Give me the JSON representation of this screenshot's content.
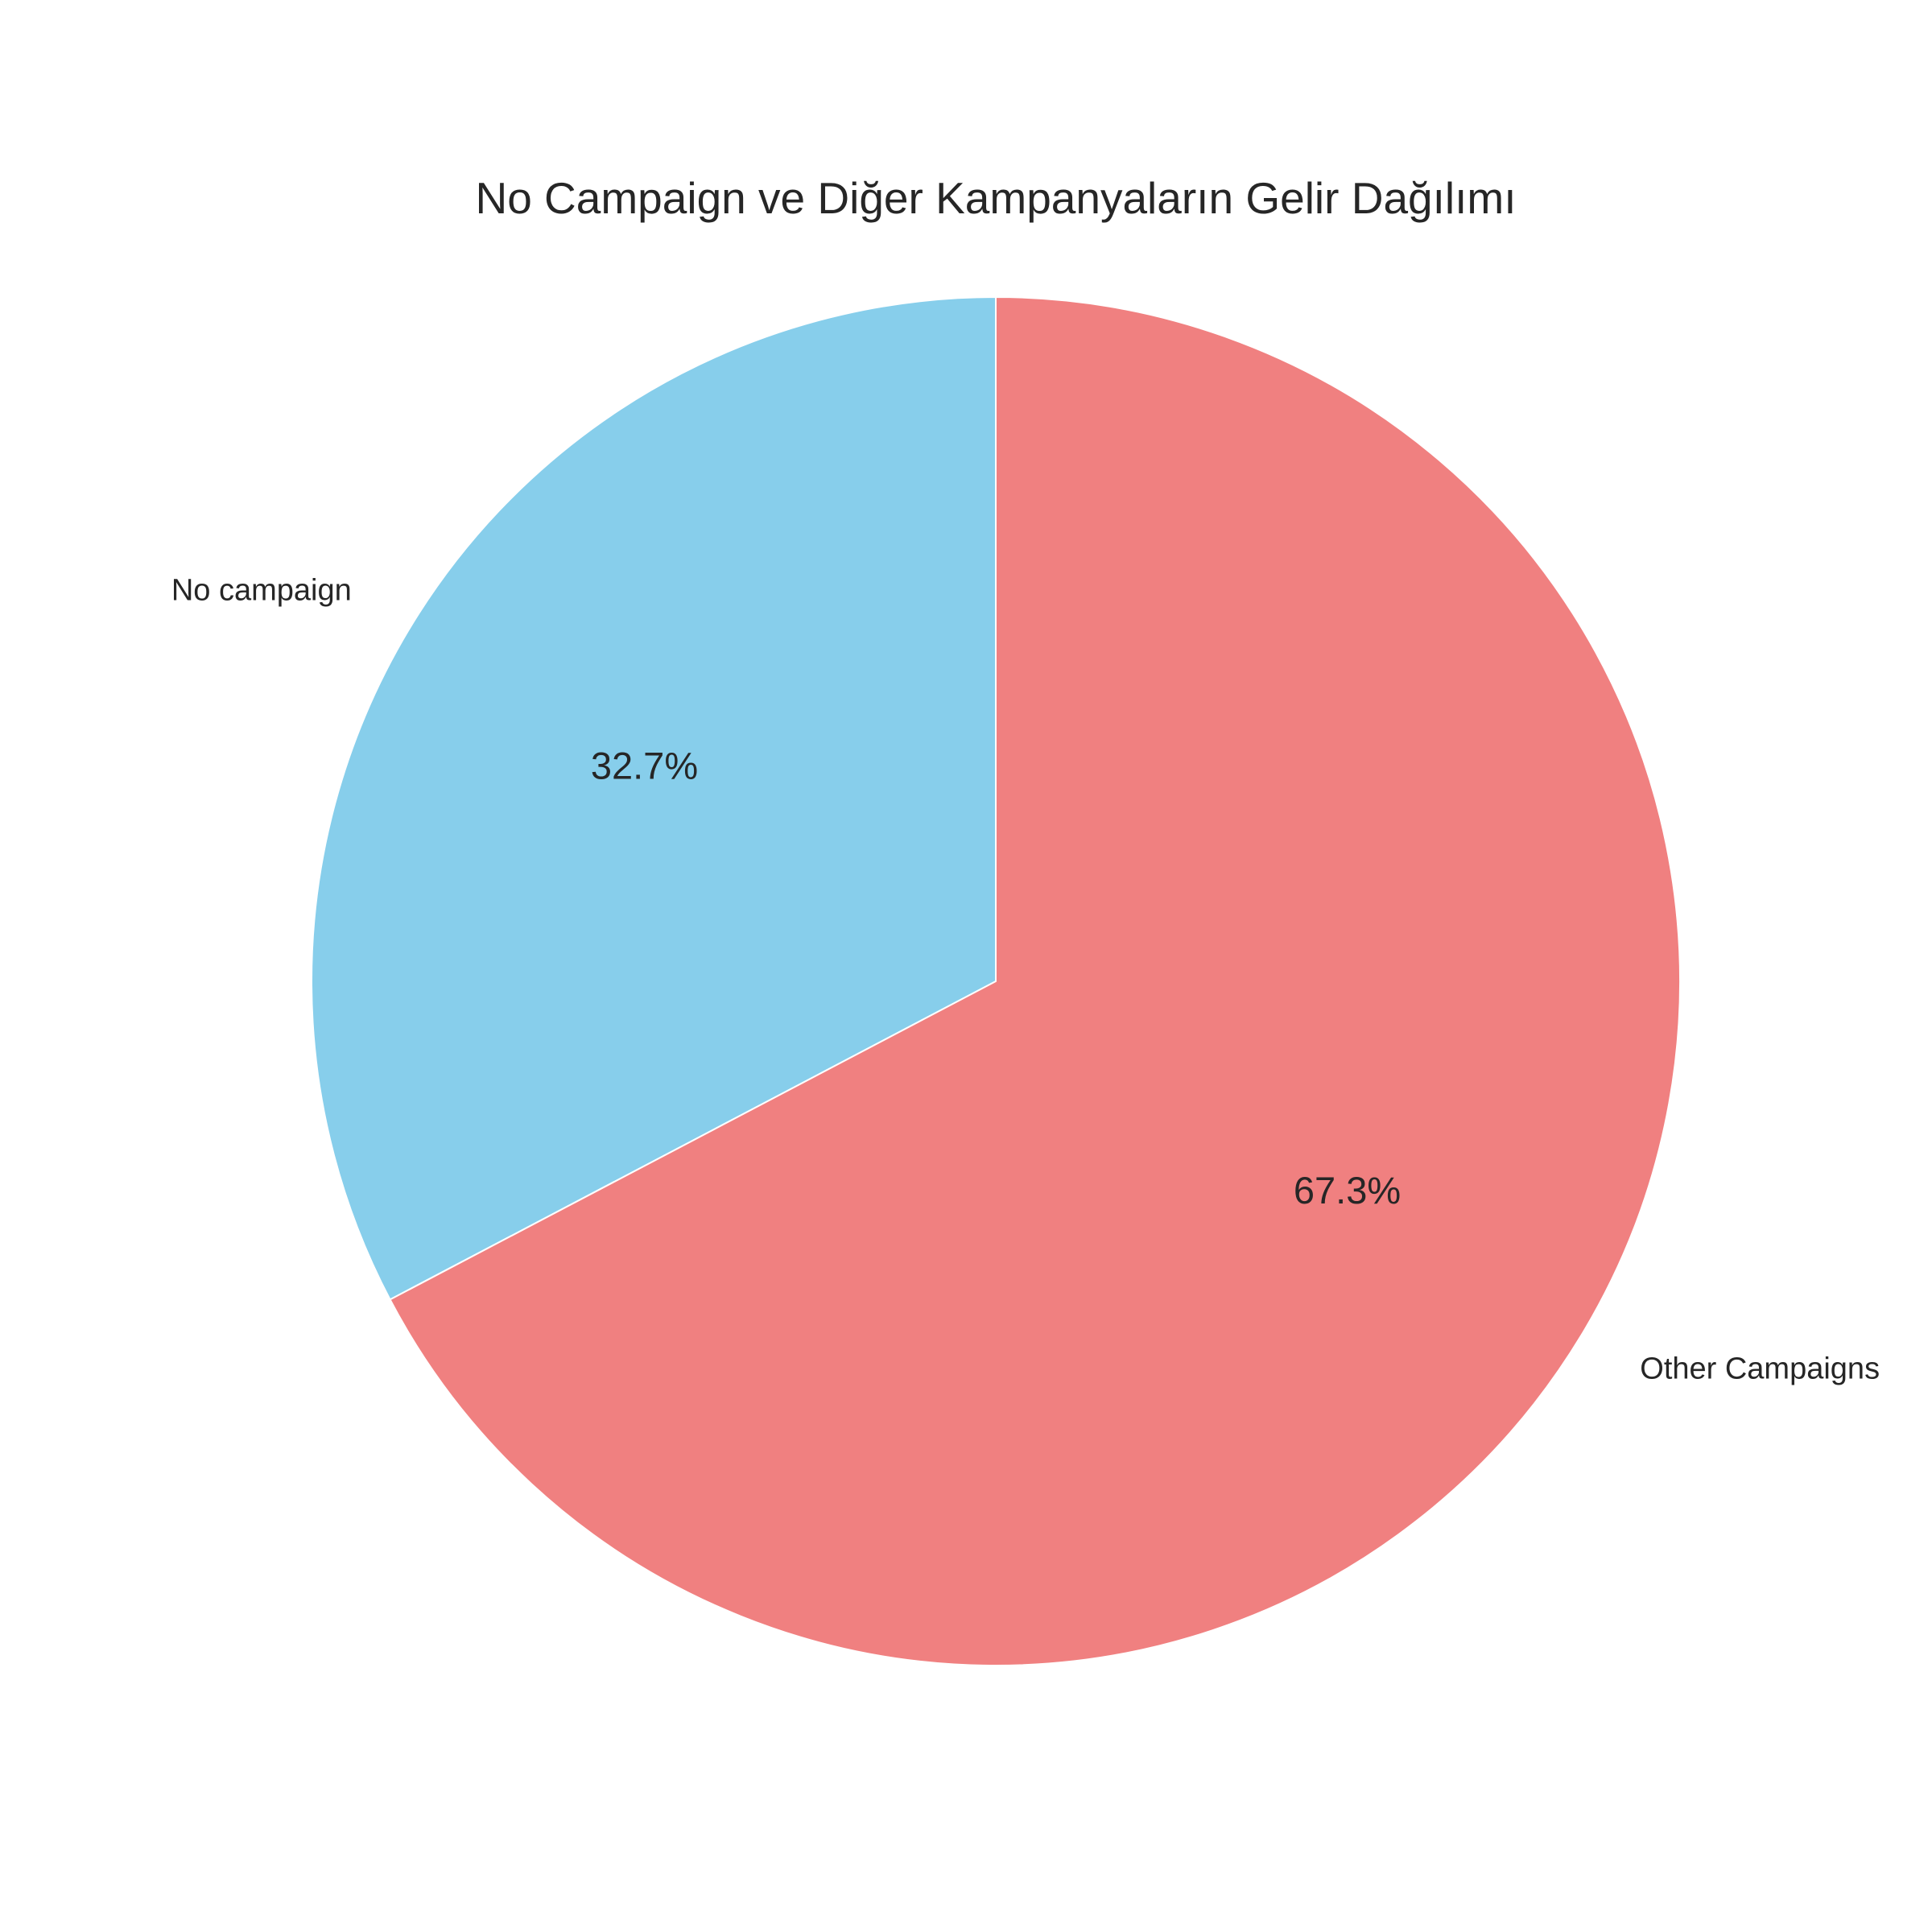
{
  "chart_data": {
    "type": "pie",
    "title": "No Campaign ve Diğer Kampanyaların Gelir Dağılımı",
    "categories": [
      "No campaign",
      "Other Campaigns"
    ],
    "values": [
      32.7,
      67.3
    ],
    "value_labels": [
      "32.7%",
      "67.3%"
    ],
    "colors": [
      "#87CEEB",
      "#F08080"
    ],
    "start_angle_deg": 90,
    "direction": "counterclockwise",
    "slice_edge_color": "#ffffff"
  }
}
